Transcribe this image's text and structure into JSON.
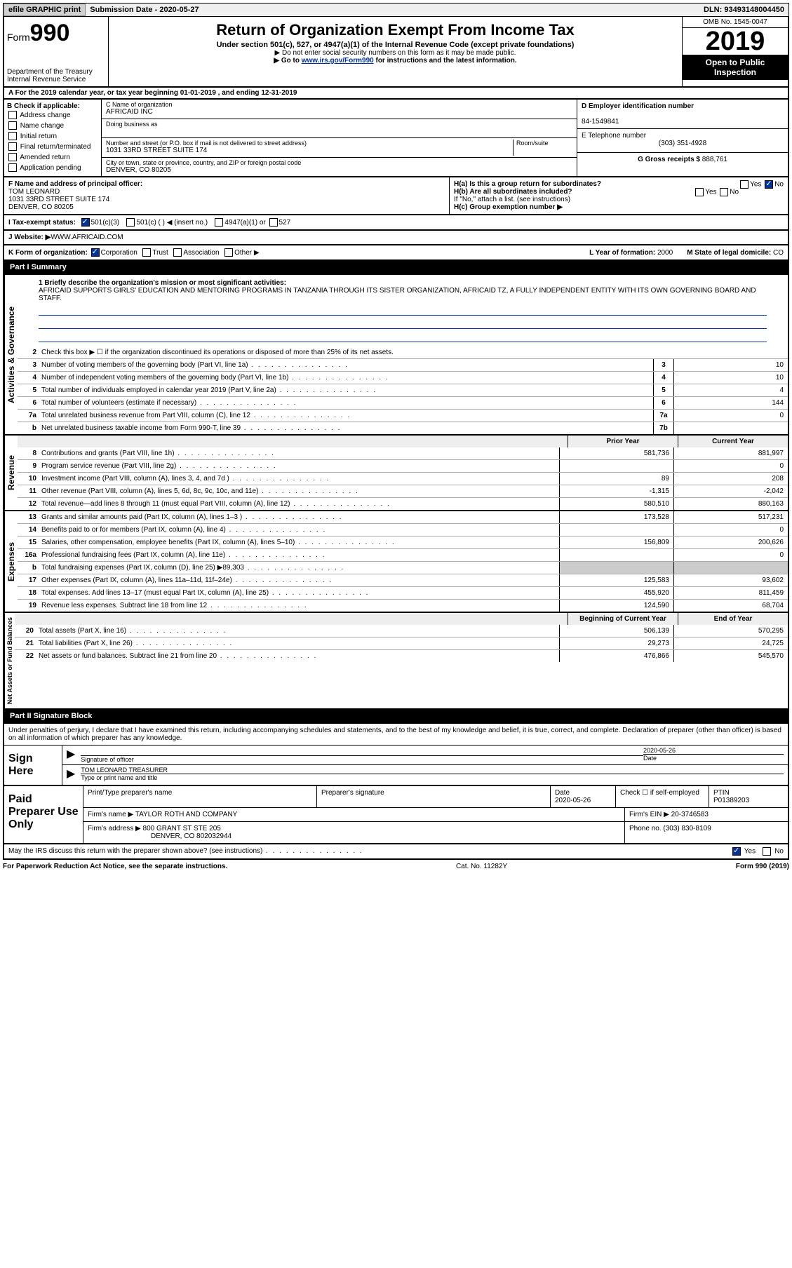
{
  "topbar": {
    "efile": "efile GRAPHIC print",
    "sub_label": "Submission Date - ",
    "sub_date": "2020-05-27",
    "dln": "DLN: 93493148004450"
  },
  "header": {
    "form_word": "Form",
    "form_num": "990",
    "dept": "Department of the Treasury",
    "irs": "Internal Revenue Service",
    "title": "Return of Organization Exempt From Income Tax",
    "subtitle": "Under section 501(c), 527, or 4947(a)(1) of the Internal Revenue Code (except private foundations)",
    "line1": "▶ Do not enter social security numbers on this form as it may be made public.",
    "line2_pre": "▶ Go to ",
    "line2_link": "www.irs.gov/Form990",
    "line2_post": " for instructions and the latest information.",
    "omb": "OMB No. 1545-0047",
    "year": "2019",
    "open": "Open to Public Inspection"
  },
  "row_a": "A For the 2019 calendar year, or tax year beginning 01-01-2019   , and ending 12-31-2019",
  "section_b": {
    "label": "B Check if applicable:",
    "opts": [
      "Address change",
      "Name change",
      "Initial return",
      "Final return/terminated",
      "Amended return",
      "Application pending"
    ]
  },
  "section_c": {
    "name_label": "C Name of organization",
    "name": "AFRICAID INC",
    "dba_label": "Doing business as",
    "addr_label": "Number and street (or P.O. box if mail is not delivered to street address)",
    "room_label": "Room/suite",
    "addr": "1031 33RD STREET SUITE 174",
    "city_label": "City or town, state or province, country, and ZIP or foreign postal code",
    "city": "DENVER, CO  80205"
  },
  "section_right": {
    "d_label": "D Employer identification number",
    "d_val": "84-1549841",
    "e_label": "E Telephone number",
    "e_val": "(303) 351-4928",
    "g_label": "G Gross receipts $ ",
    "g_val": "888,761"
  },
  "officer": {
    "f_label": "F  Name and address of principal officer:",
    "name": "TOM LEONARD",
    "addr1": "1031 33RD STREET SUITE 174",
    "addr2": "DENVER, CO  80205",
    "ha": "H(a)  Is this a group return for subordinates?",
    "ha_yes": "Yes",
    "ha_no": "No",
    "hb": "H(b)  Are all subordinates included?",
    "hb_note": "If \"No,\" attach a list. (see instructions)",
    "hc": "H(c)  Group exemption number ▶"
  },
  "tax_status": {
    "i_label": "I   Tax-exempt status:",
    "opt1": "501(c)(3)",
    "opt2": "501(c) (  ) ◀ (insert no.)",
    "opt3": "4947(a)(1) or",
    "opt4": "527"
  },
  "website": {
    "j_label": "J   Website: ▶ ",
    "url": "WWW.AFRICAID.COM"
  },
  "k_row": {
    "label": "K Form of organization:",
    "opts": [
      "Corporation",
      "Trust",
      "Association",
      "Other ▶"
    ],
    "l_label": "L Year of formation: ",
    "l_val": "2000",
    "m_label": "M State of legal domicile: ",
    "m_val": "CO"
  },
  "part1": {
    "header": "Part I      Summary",
    "q1_label": "1  Briefly describe the organization's mission or most significant activities:",
    "mission": "AFRICAID SUPPORTS GIRLS' EDUCATION AND MENTORING PROGRAMS IN TANZANIA THROUGH ITS SISTER ORGANIZATION, AFRICAID TZ, A FULLY INDEPENDENT ENTITY WITH ITS OWN GOVERNING BOARD AND STAFF.",
    "q2": "Check this box ▶ ☐ if the organization discontinued its operations or disposed of more than 25% of its net assets.",
    "col_py": "Prior Year",
    "col_cy": "Current Year",
    "col_bcy": "Beginning of Current Year",
    "col_eoy": "End of Year",
    "vert_ag": "Activities & Governance",
    "vert_rev": "Revenue",
    "vert_exp": "Expenses",
    "vert_na": "Net Assets or Fund Balances",
    "lines_ag": [
      {
        "n": "3",
        "d": "Number of voting members of the governing body (Part VI, line 1a)",
        "box": "3",
        "v": "10"
      },
      {
        "n": "4",
        "d": "Number of independent voting members of the governing body (Part VI, line 1b)",
        "box": "4",
        "v": "10"
      },
      {
        "n": "5",
        "d": "Total number of individuals employed in calendar year 2019 (Part V, line 2a)",
        "box": "5",
        "v": "4"
      },
      {
        "n": "6",
        "d": "Total number of volunteers (estimate if necessary)",
        "box": "6",
        "v": "144"
      },
      {
        "n": "7a",
        "d": "Total unrelated business revenue from Part VIII, column (C), line 12",
        "box": "7a",
        "v": "0"
      },
      {
        "n": "b",
        "d": "Net unrelated business taxable income from Form 990-T, line 39",
        "box": "7b",
        "v": ""
      }
    ],
    "lines_rev": [
      {
        "n": "8",
        "d": "Contributions and grants (Part VIII, line 1h)",
        "py": "581,736",
        "cy": "881,997"
      },
      {
        "n": "9",
        "d": "Program service revenue (Part VIII, line 2g)",
        "py": "",
        "cy": "0"
      },
      {
        "n": "10",
        "d": "Investment income (Part VIII, column (A), lines 3, 4, and 7d )",
        "py": "89",
        "cy": "208"
      },
      {
        "n": "11",
        "d": "Other revenue (Part VIII, column (A), lines 5, 6d, 8c, 9c, 10c, and 11e)",
        "py": "-1,315",
        "cy": "-2,042"
      },
      {
        "n": "12",
        "d": "Total revenue—add lines 8 through 11 (must equal Part VIII, column (A), line 12)",
        "py": "580,510",
        "cy": "880,163"
      }
    ],
    "lines_exp": [
      {
        "n": "13",
        "d": "Grants and similar amounts paid (Part IX, column (A), lines 1–3 )",
        "py": "173,528",
        "cy": "517,231"
      },
      {
        "n": "14",
        "d": "Benefits paid to or for members (Part IX, column (A), line 4)",
        "py": "",
        "cy": "0"
      },
      {
        "n": "15",
        "d": "Salaries, other compensation, employee benefits (Part IX, column (A), lines 5–10)",
        "py": "156,809",
        "cy": "200,626"
      },
      {
        "n": "16a",
        "d": "Professional fundraising fees (Part IX, column (A), line 11e)",
        "py": "",
        "cy": "0"
      },
      {
        "n": "b",
        "d": "Total fundraising expenses (Part IX, column (D), line 25) ▶89,303",
        "py": "",
        "cy": "",
        "shaded": true
      },
      {
        "n": "17",
        "d": "Other expenses (Part IX, column (A), lines 11a–11d, 11f–24e)",
        "py": "125,583",
        "cy": "93,602"
      },
      {
        "n": "18",
        "d": "Total expenses. Add lines 13–17 (must equal Part IX, column (A), line 25)",
        "py": "455,920",
        "cy": "811,459"
      },
      {
        "n": "19",
        "d": "Revenue less expenses. Subtract line 18 from line 12",
        "py": "124,590",
        "cy": "68,704"
      }
    ],
    "lines_na": [
      {
        "n": "20",
        "d": "Total assets (Part X, line 16)",
        "py": "506,139",
        "cy": "570,295"
      },
      {
        "n": "21",
        "d": "Total liabilities (Part X, line 26)",
        "py": "29,273",
        "cy": "24,725"
      },
      {
        "n": "22",
        "d": "Net assets or fund balances. Subtract line 21 from line 20",
        "py": "476,866",
        "cy": "545,570"
      }
    ]
  },
  "part2": {
    "header": "Part II      Signature Block",
    "intro": "Under penalties of perjury, I declare that I have examined this return, including accompanying schedules and statements, and to the best of my knowledge and belief, it is true, correct, and complete. Declaration of preparer (other than officer) is based on all information of which preparer has any knowledge.",
    "sign_here": "Sign Here",
    "sig_officer": "Signature of officer",
    "sig_date": "2020-05-26",
    "date_label": "Date",
    "sig_name": "TOM LEONARD  TREASURER",
    "sig_name_label": "Type or print name and title",
    "paid_label": "Paid Preparer Use Only",
    "prep_name_label": "Print/Type preparer's name",
    "prep_sig_label": "Preparer's signature",
    "prep_date": "2020-05-26",
    "check_label": "Check ☐ if self-employed",
    "ptin_label": "PTIN",
    "ptin": "P01389203",
    "firm_name_label": "Firm's name    ▶ ",
    "firm_name": "TAYLOR ROTH AND COMPANY",
    "firm_ein_label": "Firm's EIN ▶ ",
    "firm_ein": "20-3746583",
    "firm_addr_label": "Firm's address ▶ ",
    "firm_addr1": "800 GRANT ST STE 205",
    "firm_addr2": "DENVER, CO  802032944",
    "phone_label": "Phone no. ",
    "phone": "(303) 830-8109",
    "discuss": "May the IRS discuss this return with the preparer shown above? (see instructions)",
    "yes": "Yes",
    "no": "No"
  },
  "footer": {
    "pra": "For Paperwork Reduction Act Notice, see the separate instructions.",
    "cat": "Cat. No. 11282Y",
    "form": "Form 990 (2019)"
  }
}
